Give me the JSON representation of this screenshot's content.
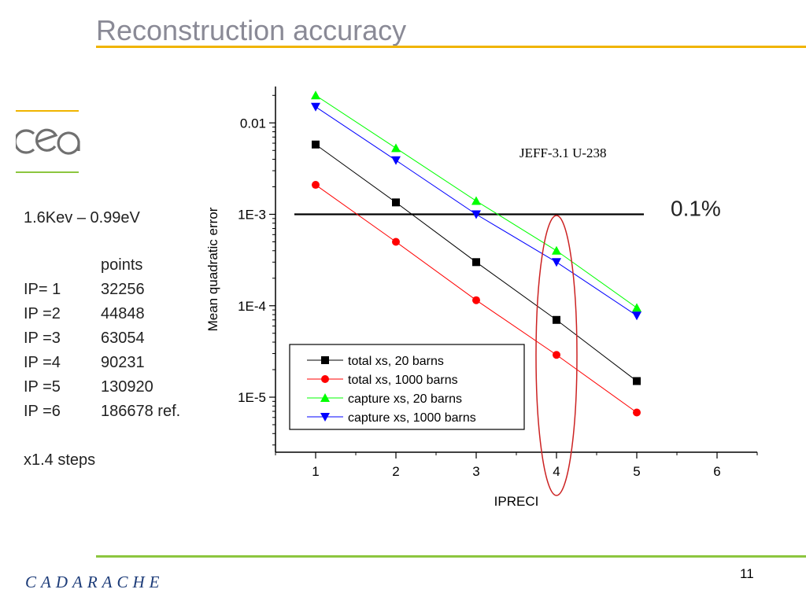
{
  "slide": {
    "title": "Reconstruction accuracy",
    "page_number": "11",
    "footer_logo_text": "CADARACHE",
    "logo_text": "cea"
  },
  "side": {
    "energy_range": "1.6Kev – 0.99eV",
    "points_header": "points",
    "rows": [
      {
        "label": "IP= 1",
        "value": "32256"
      },
      {
        "label": "IP =2",
        "value": "44848"
      },
      {
        "label": "IP =3",
        "value": "63054"
      },
      {
        "label": "IP =4",
        "value": "90231"
      },
      {
        "label": "IP =5",
        "value": "130920"
      },
      {
        "label": "IP =6",
        "value": "186678 ref."
      }
    ],
    "steps_note": "x1.4 steps"
  },
  "colors": {
    "title": "#8a8a96",
    "title_rule": "#f0b400",
    "footer_rule": "#8cc63f",
    "ellipse": "#cc2222"
  },
  "chart_data": {
    "type": "line",
    "xlabel": "IPRECI",
    "ylabel": "Mean quadratic error",
    "y_scale": "log",
    "xlim": [
      0.5,
      6.5
    ],
    "ylim": [
      2.5e-06,
      0.025
    ],
    "x_ticks": [
      "1",
      "2",
      "3",
      "4",
      "5",
      "6"
    ],
    "y_ticks": [
      {
        "value": 0.01,
        "label": "0.01"
      },
      {
        "value": 0.001,
        "label": "1E-3"
      },
      {
        "value": 0.0001,
        "label": "1E-4"
      },
      {
        "value": 1e-05,
        "label": "1E-5"
      }
    ],
    "annotation": "JEFF-3.1 U-238",
    "reference_line": {
      "value": 0.001,
      "label": "0.1%"
    },
    "highlight_x": 4,
    "legend_position": "bottom-center",
    "x": [
      1,
      2,
      3,
      4,
      5
    ],
    "series": [
      {
        "name": "total xs, 20 barns",
        "color": "#000000",
        "marker": "square",
        "values": [
          0.0058,
          0.00135,
          0.0003,
          7e-05,
          1.5e-05
        ]
      },
      {
        "name": "total xs, 1000 barns",
        "color": "#ff0000",
        "marker": "circle",
        "values": [
          0.0021,
          0.0005,
          0.000115,
          2.9e-05,
          6.8e-06
        ]
      },
      {
        "name": "capture xs, 20 barns",
        "color": "#00ff00",
        "marker": "triangle-up",
        "values": [
          0.02,
          0.0053,
          0.0014,
          0.0004,
          9.5e-05
        ]
      },
      {
        "name": "capture xs, 1000 barns",
        "color": "#0000ff",
        "marker": "triangle-down",
        "values": [
          0.015,
          0.0039,
          0.001,
          0.0003,
          7.8e-05
        ]
      }
    ]
  }
}
